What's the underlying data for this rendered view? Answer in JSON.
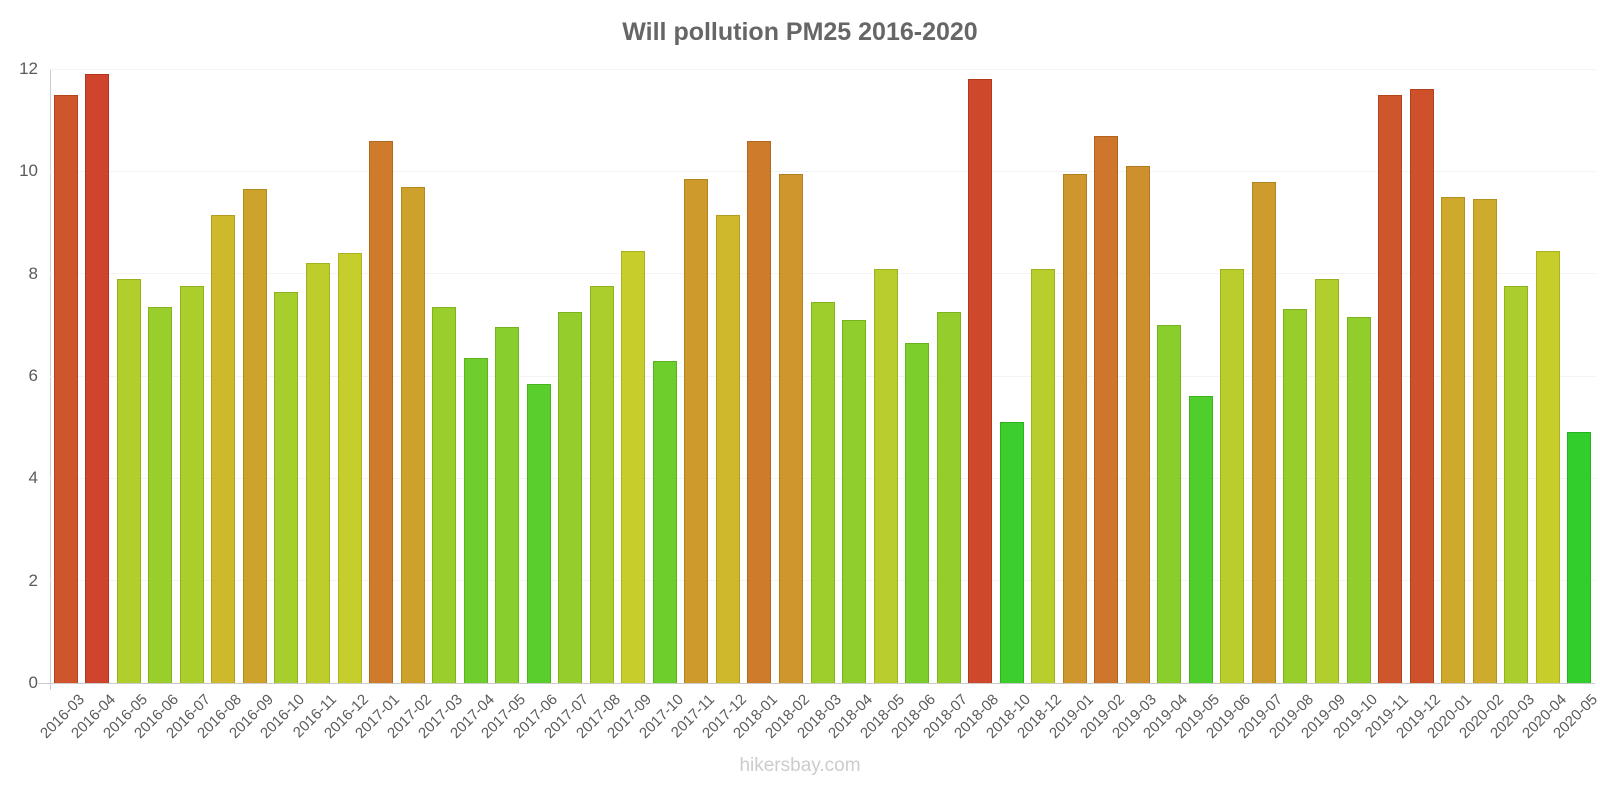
{
  "footer": {
    "watermark": "hikersbay.com"
  },
  "colors": {
    "title": "#666666",
    "axis_line": "#cccccc",
    "grid_line": "#f3f3f3",
    "tick_label": "#5a5a5a",
    "watermark": "#cccccc"
  },
  "chart_data": {
    "type": "bar",
    "title": "Will pollution PM25 2016-2020",
    "xlabel": "",
    "ylabel": "",
    "ylim": [
      0,
      12
    ],
    "yticks": [
      0,
      2,
      4,
      6,
      8,
      10,
      12
    ],
    "grid": true,
    "legend": false,
    "x_tick_rotation": -45,
    "categories": [
      "2016-03",
      "2016-04",
      "2016-05",
      "2016-06",
      "2016-07",
      "2016-08",
      "2016-09",
      "2016-10",
      "2016-11",
      "2016-12",
      "2017-01",
      "2017-02",
      "2017-03",
      "2017-04",
      "2017-05",
      "2017-06",
      "2017-07",
      "2017-08",
      "2017-09",
      "2017-10",
      "2017-11",
      "2017-12",
      "2018-01",
      "2018-02",
      "2018-03",
      "2018-04",
      "2018-05",
      "2018-06",
      "2018-07",
      "2018-08",
      "2018-10",
      "2018-12",
      "2019-01",
      "2019-02",
      "2019-03",
      "2019-04",
      "2019-05",
      "2019-06",
      "2019-07",
      "2019-08",
      "2019-09",
      "2019-10",
      "2019-11",
      "2019-12",
      "2020-01",
      "2020-02",
      "2020-03",
      "2020-04",
      "2020-05"
    ],
    "values": [
      11.5,
      11.9,
      7.9,
      7.35,
      7.75,
      9.15,
      9.65,
      7.65,
      8.2,
      8.4,
      10.6,
      9.7,
      7.35,
      6.35,
      6.95,
      5.85,
      7.25,
      7.75,
      8.45,
      6.3,
      9.85,
      9.15,
      10.6,
      9.95,
      7.45,
      7.1,
      8.1,
      6.65,
      7.25,
      11.8,
      5.1,
      8.1,
      9.95,
      10.7,
      10.1,
      7.0,
      5.6,
      8.1,
      9.8,
      7.3,
      7.9,
      7.15,
      11.5,
      11.6,
      9.5,
      9.45,
      7.75,
      8.45,
      4.9
    ],
    "color_scale": {
      "description": "value-driven hue: bright green (low) -> yellow -> gold -> orange -> red (high)",
      "min_value": 5,
      "hue_at_min": 116,
      "hue_per_unit": -15.5,
      "saturation_pct": 65,
      "lightness_pct": 49,
      "anchors": {
        "5.0": "#37d02f",
        "8.0": "#b3cc2c",
        "9.7": "#d2a52b",
        "10.6": "#d2772c",
        "11.9": "#d0432c"
      }
    }
  }
}
